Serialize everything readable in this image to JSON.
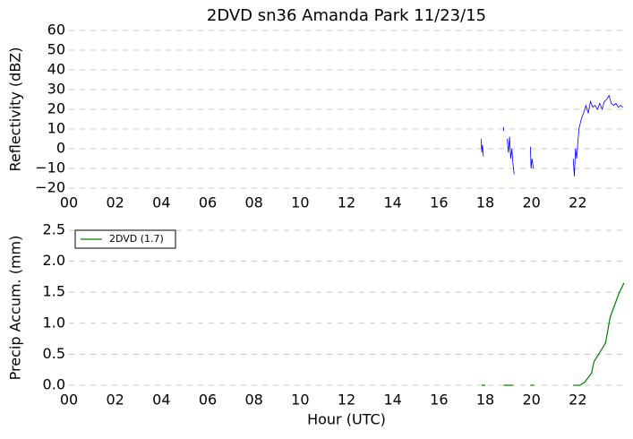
{
  "chart_data": [
    {
      "type": "line",
      "title": "2DVD sn36 Amanda Park 11/23/15",
      "ylabel": "Reflectivity (dBZ)",
      "x": [
        17.82,
        17.85,
        17.88,
        17.92,
        18.3,
        18.78,
        18.8,
        18.88,
        18.95,
        19.0,
        19.05,
        19.1,
        19.15,
        19.2,
        19.25,
        19.6,
        19.95,
        19.98,
        20.02,
        20.08,
        21.0,
        21.8,
        21.85,
        21.9,
        21.95,
        22.05,
        22.15,
        22.25,
        22.35,
        22.45,
        22.55,
        22.65,
        22.75,
        22.85,
        22.95,
        23.05,
        23.15,
        23.25,
        23.35,
        23.45,
        23.55,
        23.65,
        23.75,
        23.85,
        23.95
      ],
      "series": [
        {
          "color": "#0000ff",
          "values": [
            5,
            -2,
            2,
            -4,
            null,
            11,
            9,
            null,
            5,
            -2,
            6,
            -5,
            0,
            -8,
            -13,
            null,
            1,
            -10,
            -5,
            -10,
            null,
            -5,
            -14,
            0,
            -5,
            10,
            15,
            18,
            22,
            18,
            24,
            21,
            22,
            20,
            23,
            20,
            24,
            25,
            27,
            23,
            22,
            23,
            21,
            22,
            21
          ]
        }
      ],
      "xlim": [
        0,
        24
      ],
      "xticks": [
        {
          "value": 0,
          "label": "00"
        },
        {
          "value": 2,
          "label": "02"
        },
        {
          "value": 4,
          "label": "04"
        },
        {
          "value": 6,
          "label": "06"
        },
        {
          "value": 8,
          "label": "08"
        },
        10,
        12,
        14,
        16,
        18,
        20,
        22
      ],
      "ylim": [
        -20,
        60
      ],
      "yticks": [
        {
          "value": -20,
          "label": "−20"
        },
        {
          "value": -10,
          "label": "−10"
        },
        0,
        10,
        20,
        30,
        40,
        50,
        60
      ],
      "grid": true
    },
    {
      "type": "line",
      "ylabel": "Precip Accum. (mm)",
      "xlabel": "Hour (UTC)",
      "x": [
        17.85,
        18.0,
        18.4,
        18.8,
        19.2,
        19.6,
        19.95,
        20.1,
        21.0,
        21.8,
        22.1,
        22.3,
        22.5,
        22.6,
        22.7,
        22.9,
        23.1,
        23.2,
        23.4,
        23.6,
        23.8,
        24.0
      ],
      "series": [
        {
          "name": "2DVD (1.7)",
          "color": "#008000",
          "values": [
            0,
            0,
            null,
            0,
            0,
            null,
            0,
            0,
            null,
            0,
            0,
            0.05,
            0.15,
            0.2,
            0.38,
            0.5,
            0.62,
            0.68,
            1.1,
            1.3,
            1.5,
            1.65
          ]
        }
      ],
      "xlim": [
        0,
        24
      ],
      "xticks": [
        {
          "value": 0,
          "label": "00"
        },
        {
          "value": 2,
          "label": "02"
        },
        {
          "value": 4,
          "label": "04"
        },
        {
          "value": 6,
          "label": "06"
        },
        {
          "value": 8,
          "label": "08"
        },
        10,
        12,
        14,
        16,
        18,
        20,
        22
      ],
      "ylim": [
        0,
        2.5
      ],
      "yticks": [
        {
          "value": 0,
          "label": "0.0"
        },
        0.5,
        {
          "value": 1,
          "label": "1.0"
        },
        1.5,
        {
          "value": 2,
          "label": "2.0"
        },
        2.5
      ],
      "grid": true,
      "legend": "upper left"
    }
  ]
}
